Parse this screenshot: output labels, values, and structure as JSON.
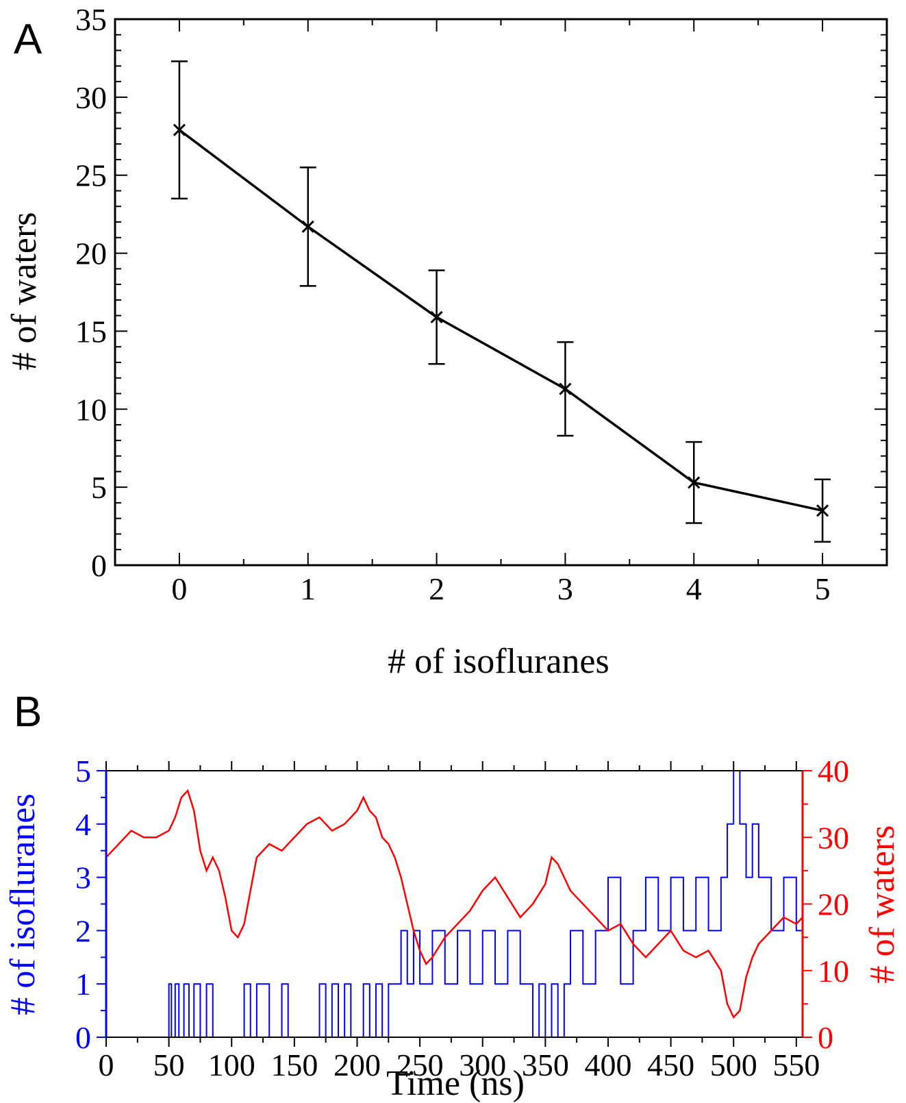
{
  "colors": {
    "axis": "#000000",
    "isoflurane": "#0000ff",
    "water": "#ff0000"
  },
  "chart_data": [
    {
      "panel": "A",
      "type": "line",
      "xlabel": "# of isofluranes",
      "ylabel": "# of waters",
      "xlim": [
        -0.5,
        5.5
      ],
      "ylim": [
        0,
        35
      ],
      "x_ticks": [
        "0",
        "1",
        "2",
        "3",
        "4",
        "5"
      ],
      "y_ticks": [
        "0",
        "5",
        "10",
        "15",
        "20",
        "25",
        "30",
        "35"
      ],
      "marker": "x",
      "x": [
        0,
        1,
        2,
        3,
        4,
        5
      ],
      "y": [
        27.9,
        21.7,
        15.9,
        11.3,
        5.3,
        3.5
      ],
      "error": [
        4.4,
        3.8,
        3.0,
        3.0,
        2.6,
        2.0
      ]
    },
    {
      "panel": "B",
      "type": "line",
      "xlabel": "Time (ns)",
      "ylabel_left": "# of isofluranes",
      "ylabel_right": "# of waters",
      "xlim": [
        0,
        555
      ],
      "ylim_left": [
        0,
        5
      ],
      "ylim_right": [
        0,
        40
      ],
      "x_ticks": [
        "0",
        "50",
        "100",
        "150",
        "200",
        "250",
        "300",
        "350",
        "400",
        "450",
        "500",
        "550"
      ],
      "y_ticks_left": [
        "0",
        "1",
        "2",
        "3",
        "4",
        "5"
      ],
      "y_ticks_right": [
        "0",
        "10",
        "20",
        "30",
        "40"
      ],
      "series": [
        {
          "axis": "left",
          "x": [
            0,
            50,
            52,
            55,
            58,
            62,
            66,
            70,
            75,
            80,
            85,
            90,
            95,
            100,
            110,
            115,
            120,
            130,
            140,
            145,
            150,
            170,
            175,
            180,
            185,
            190,
            195,
            205,
            210,
            215,
            220,
            225,
            230,
            235,
            240,
            245,
            250,
            260,
            270,
            280,
            290,
            300,
            310,
            320,
            330,
            340,
            345,
            350,
            355,
            360,
            365,
            370,
            380,
            390,
            400,
            410,
            420,
            430,
            440,
            450,
            460,
            470,
            480,
            490,
            495,
            500,
            505,
            510,
            515,
            520,
            530,
            540,
            550,
            555
          ],
          "y": [
            0,
            1,
            0,
            1,
            0,
            1,
            0,
            1,
            0,
            1,
            0,
            0,
            0,
            0,
            1,
            0,
            1,
            0,
            1,
            0,
            0,
            1,
            0,
            1,
            0,
            1,
            0,
            1,
            0,
            1,
            0,
            1,
            1,
            2,
            1,
            2,
            1,
            2,
            1,
            2,
            1,
            2,
            1,
            2,
            1,
            0,
            1,
            0,
            1,
            0,
            1,
            2,
            1,
            2,
            3,
            1,
            2,
            3,
            2,
            3,
            2,
            3,
            2,
            3,
            4,
            5,
            4,
            3,
            4,
            3,
            2,
            3,
            2,
            3
          ]
        },
        {
          "axis": "right",
          "x": [
            0,
            10,
            20,
            30,
            40,
            50,
            55,
            60,
            65,
            70,
            75,
            80,
            85,
            90,
            95,
            100,
            105,
            110,
            115,
            120,
            130,
            140,
            150,
            160,
            170,
            180,
            190,
            200,
            205,
            210,
            215,
            220,
            225,
            230,
            235,
            240,
            245,
            250,
            255,
            260,
            270,
            280,
            290,
            300,
            310,
            320,
            330,
            340,
            350,
            355,
            360,
            365,
            370,
            380,
            390,
            400,
            410,
            420,
            430,
            440,
            450,
            460,
            470,
            480,
            490,
            495,
            500,
            505,
            510,
            515,
            520,
            530,
            540,
            550,
            555
          ],
          "y": [
            27,
            29,
            31,
            30,
            30,
            31,
            33,
            36,
            37,
            34,
            28,
            25,
            27,
            25,
            21,
            16,
            15,
            17,
            22,
            27,
            29,
            28,
            30,
            32,
            33,
            31,
            32,
            34,
            36,
            34,
            33,
            30,
            29,
            27,
            24,
            20,
            16,
            13,
            11,
            12,
            15,
            17,
            19,
            22,
            24,
            21,
            18,
            20,
            23,
            27,
            26,
            24,
            22,
            20,
            18,
            16,
            17,
            14,
            12,
            14,
            16,
            13,
            12,
            13,
            10,
            5,
            3,
            4,
            9,
            12,
            14,
            16,
            18,
            17,
            18
          ]
        }
      ]
    }
  ]
}
